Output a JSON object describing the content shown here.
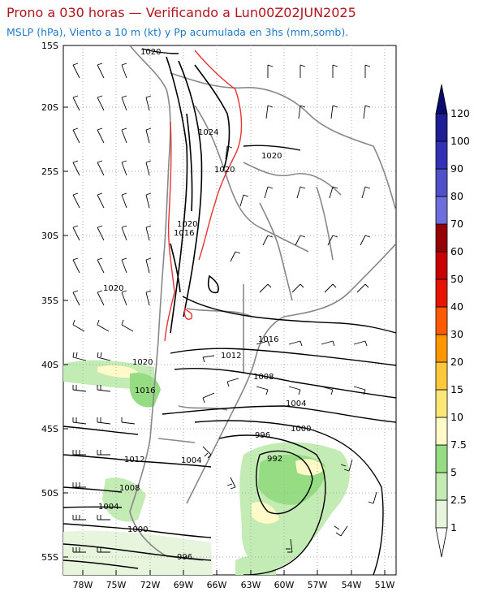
{
  "title": "Prono a 030 horas — Verificando a Lun00Z02JUN2025",
  "subtitle": "MSLP (hPa), Viento a 10 m (kt) y Pp acumulada en 3hs (mm,somb).",
  "axes": {
    "lat_labels": [
      "15S",
      "20S",
      "25S",
      "30S",
      "35S",
      "40S",
      "45S",
      "50S",
      "55S"
    ],
    "lon_labels": [
      "78W",
      "75W",
      "72W",
      "69W",
      "66W",
      "63W",
      "60W",
      "57W",
      "54W",
      "51W"
    ]
  },
  "isobar_labels": [
    "1020",
    "1024",
    "1020",
    "1020",
    "1020",
    "1016",
    "1020",
    "1016",
    "1012",
    "1008",
    "1004",
    "1000",
    "996",
    "992",
    "1020",
    "1016",
    "1012",
    "1004",
    "1008",
    "1004",
    "1000",
    "996"
  ],
  "colorbar": {
    "levels": [
      "1",
      "2.5",
      "5",
      "7.5",
      "10",
      "15",
      "20",
      "30",
      "40",
      "50",
      "60",
      "70",
      "80",
      "90",
      "100",
      "120"
    ],
    "colors": [
      "#ffffff",
      "#e6f5dc",
      "#c3ebb4",
      "#96dc82",
      "#fffac8",
      "#ffe678",
      "#ffc83c",
      "#ff9600",
      "#ff5a00",
      "#e61400",
      "#c80000",
      "#960000",
      "#6e6edc",
      "#5050c8",
      "#3232b4",
      "#1e1e96",
      "#0a0a6e"
    ]
  }
}
